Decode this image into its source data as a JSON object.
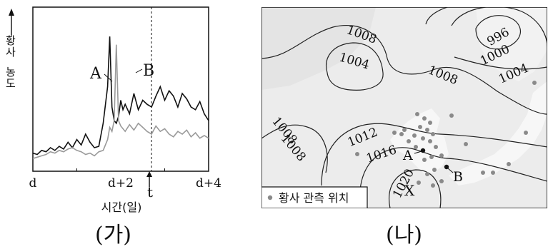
{
  "panel_a": {
    "ylabel": "황사 농도",
    "xlabel": "시간(일)",
    "caption": "(가)",
    "series_a_label": "A",
    "series_b_label": "B",
    "marker_label": "t",
    "chart_data": {
      "type": "line",
      "x_ticks": [
        "d",
        "d+2",
        "d+4"
      ],
      "xlim": [
        0,
        4
      ],
      "marker_x": 2.7,
      "series": [
        {
          "name": "A",
          "color": "#111111",
          "x": [
            0,
            0.1,
            0.2,
            0.3,
            0.4,
            0.5,
            0.6,
            0.7,
            0.8,
            0.9,
            1.0,
            1.1,
            1.2,
            1.3,
            1.4,
            1.5,
            1.6,
            1.7,
            1.75,
            1.8,
            1.85,
            1.9,
            1.95,
            2.0,
            2.05,
            2.1,
            2.2,
            2.3,
            2.4,
            2.5,
            2.6,
            2.7,
            2.8,
            2.9,
            3.0,
            3.1,
            3.2,
            3.3,
            3.4,
            3.5,
            3.6,
            3.7,
            3.8,
            3.9,
            4.0
          ],
          "y": [
            0.06,
            0.05,
            0.08,
            0.07,
            0.1,
            0.08,
            0.11,
            0.09,
            0.14,
            0.1,
            0.16,
            0.12,
            0.2,
            0.14,
            0.1,
            0.11,
            0.28,
            0.55,
            0.92,
            0.4,
            0.3,
            0.28,
            0.33,
            0.45,
            0.38,
            0.42,
            0.35,
            0.5,
            0.38,
            0.45,
            0.42,
            0.4,
            0.48,
            0.55,
            0.45,
            0.52,
            0.48,
            0.4,
            0.5,
            0.46,
            0.4,
            0.38,
            0.44,
            0.35,
            0.3
          ]
        },
        {
          "name": "B",
          "color": "#9a9a9a",
          "x": [
            0,
            0.1,
            0.2,
            0.3,
            0.4,
            0.5,
            0.6,
            0.7,
            0.8,
            0.9,
            1.0,
            1.1,
            1.2,
            1.3,
            1.4,
            1.5,
            1.6,
            1.7,
            1.75,
            1.8,
            1.85,
            1.9,
            1.95,
            2.0,
            2.05,
            2.1,
            2.2,
            2.3,
            2.4,
            2.5,
            2.6,
            2.7,
            2.8,
            2.9,
            3.0,
            3.1,
            3.2,
            3.3,
            3.4,
            3.5,
            3.6,
            3.7,
            3.8,
            3.9,
            4.0
          ],
          "y": [
            0.02,
            0.03,
            0.04,
            0.05,
            0.07,
            0.06,
            0.08,
            0.07,
            0.09,
            0.1,
            0.08,
            0.07,
            0.05,
            0.06,
            0.04,
            0.07,
            0.08,
            0.16,
            0.25,
            0.22,
            0.3,
            0.86,
            0.3,
            0.26,
            0.24,
            0.22,
            0.27,
            0.23,
            0.28,
            0.25,
            0.22,
            0.2,
            0.26,
            0.22,
            0.24,
            0.2,
            0.18,
            0.22,
            0.2,
            0.23,
            0.18,
            0.21,
            0.17,
            0.19,
            0.17
          ]
        }
      ]
    }
  },
  "panel_b": {
    "caption": "(나)",
    "legend_label": "황사 관측 위치",
    "isobars": [
      "1008",
      "1004",
      "996",
      "1000",
      "1004",
      "1008",
      "1008",
      "1012",
      "1016",
      "1008",
      "1020"
    ],
    "point_a": "A",
    "point_b": "B",
    "region_x": "X"
  }
}
